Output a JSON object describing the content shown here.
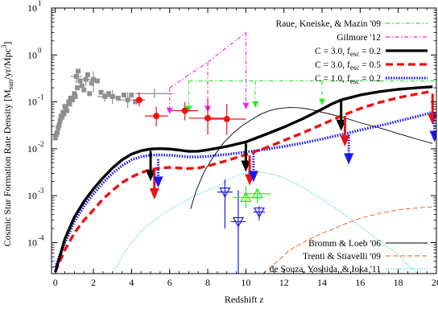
{
  "chart_data": {
    "type": "line",
    "xlabel_main": "Redshift ",
    "xlabel_var": "z",
    "ylabel_pre": "Cosmic Star Formation Rate Density [M",
    "ylabel_sub1": "sun",
    "ylabel_mid": "/yr/Mpc",
    "ylabel_sup": "3",
    "ylabel_post": "]",
    "xlim": [
      -0.2,
      20
    ],
    "ylim_log10": [
      -4.66,
      1
    ],
    "log_y": true,
    "x_ticks": [
      "0",
      "2",
      "4",
      "6",
      "8",
      "10",
      "12",
      "14",
      "16",
      "18",
      "20"
    ],
    "x_tick_values": [
      0,
      2,
      4,
      6,
      8,
      10,
      12,
      14,
      16,
      18,
      20
    ],
    "y_tick_exponents": [
      -4,
      -3,
      -2,
      -1,
      0,
      1
    ],
    "y_tick_base": "10",
    "legend_top": [
      {
        "key": "raue",
        "parts": [
          {
            "t": "Raue, Kneiske, & Mazin '09"
          }
        ],
        "color": "#22ee22",
        "dash": "5,3,1.5,3",
        "width": 1.2
      },
      {
        "key": "gilmore",
        "parts": [
          {
            "t": "Gilmore '12"
          }
        ],
        "color": "#ee22ee",
        "dash": "5,2.5,1.5,2.5",
        "width": 1.2
      },
      {
        "key": "c30_02",
        "parts": [
          {
            "t": "C = 3.0, f"
          },
          {
            "t": "esc",
            "sub": true
          },
          {
            "t": " = 0.2"
          }
        ],
        "color": "#000000",
        "dash": "",
        "width": 3.2
      },
      {
        "key": "c30_05",
        "parts": [
          {
            "t": "C = 3.0, f"
          },
          {
            "t": "esc",
            "sub": true
          },
          {
            "t": " = 0.5"
          }
        ],
        "color": "#ee1111",
        "dash": "9,5",
        "width": 3.2
      },
      {
        "key": "c10_02",
        "parts": [
          {
            "t": "C = 1.0, f"
          },
          {
            "t": "esc",
            "sub": true
          },
          {
            "t": " = 0.2"
          }
        ],
        "color": "#1a1aee",
        "dash": "1.6,1.6",
        "width": 3.2
      }
    ],
    "legend_bottom": [
      {
        "key": "bromm",
        "parts": [
          {
            "t": "Bromm & Loeb '06"
          }
        ],
        "color": "#000000",
        "dash": "",
        "width": 0.9
      },
      {
        "key": "trenti",
        "parts": [
          {
            "t": "Trenti & Stiavelli '09"
          }
        ],
        "color": "#ee5511",
        "dash": "6,3",
        "width": 0.9
      },
      {
        "key": "desouza",
        "parts": [
          {
            "t": "de Souza, Yoshida, & Ioka '11"
          }
        ],
        "color": "#11cccc",
        "dash": "1.2,1.8",
        "width": 1.0
      }
    ],
    "curves": {
      "c30_02": [
        [
          0,
          2.35e-05
        ],
        [
          0.5,
          0.00012
        ],
        [
          1,
          0.00035
        ],
        [
          1.5,
          0.00075
        ],
        [
          2,
          0.0014
        ],
        [
          2.5,
          0.0024
        ],
        [
          3,
          0.0039
        ],
        [
          3.5,
          0.0058
        ],
        [
          4,
          0.0077
        ],
        [
          4.5,
          0.0091
        ],
        [
          5,
          0.0099
        ],
        [
          5.5,
          0.0101
        ],
        [
          6,
          0.0099
        ],
        [
          6.5,
          0.0094
        ],
        [
          7,
          0.0088
        ],
        [
          7.5,
          0.0089
        ],
        [
          8,
          0.0095
        ],
        [
          9,
          0.0112
        ],
        [
          10,
          0.014
        ],
        [
          11,
          0.02
        ],
        [
          12,
          0.029
        ],
        [
          13,
          0.044
        ],
        [
          14,
          0.07
        ],
        [
          14.5,
          0.09
        ],
        [
          15,
          0.11
        ],
        [
          16,
          0.14
        ],
        [
          17,
          0.165
        ],
        [
          18,
          0.185
        ],
        [
          19,
          0.2
        ],
        [
          19.8,
          0.21
        ]
      ],
      "c30_05": [
        [
          0,
          2.4e-05
        ],
        [
          0.5,
          7e-05
        ],
        [
          1,
          0.00016
        ],
        [
          1.5,
          0.0003
        ],
        [
          2,
          0.0005
        ],
        [
          2.5,
          0.00085
        ],
        [
          3,
          0.0013
        ],
        [
          3.5,
          0.0019
        ],
        [
          4,
          0.0025
        ],
        [
          4.5,
          0.0031
        ],
        [
          5,
          0.0036
        ],
        [
          5.5,
          0.0039
        ],
        [
          6,
          0.004
        ],
        [
          6.5,
          0.0039
        ],
        [
          7,
          0.0038
        ],
        [
          7.5,
          0.0039
        ],
        [
          8,
          0.0043
        ],
        [
          9,
          0.0056
        ],
        [
          10,
          0.0075
        ],
        [
          11,
          0.0103
        ],
        [
          12,
          0.015
        ],
        [
          13,
          0.022
        ],
        [
          14,
          0.033
        ],
        [
          15,
          0.05
        ],
        [
          16,
          0.072
        ],
        [
          17,
          0.097
        ],
        [
          18,
          0.123
        ],
        [
          19,
          0.148
        ],
        [
          19.8,
          0.17
        ]
      ],
      "c10_02": [
        [
          0,
          3e-05
        ],
        [
          0.5,
          0.0001
        ],
        [
          1,
          0.00028
        ],
        [
          1.5,
          0.0006
        ],
        [
          2,
          0.0011
        ],
        [
          2.5,
          0.0019
        ],
        [
          3,
          0.003
        ],
        [
          3.5,
          0.0044
        ],
        [
          4,
          0.0058
        ],
        [
          4.5,
          0.0068
        ],
        [
          5,
          0.0073
        ],
        [
          5.5,
          0.0074
        ],
        [
          6,
          0.0073
        ],
        [
          6.5,
          0.007
        ],
        [
          7,
          0.0067
        ],
        [
          7.5,
          0.0067
        ],
        [
          8,
          0.0069
        ],
        [
          9,
          0.0076
        ],
        [
          10,
          0.0085
        ],
        [
          11,
          0.0097
        ],
        [
          12,
          0.0112
        ],
        [
          13,
          0.0133
        ],
        [
          14,
          0.0162
        ],
        [
          15,
          0.02
        ],
        [
          16,
          0.025
        ],
        [
          17,
          0.031
        ],
        [
          18,
          0.039
        ],
        [
          19,
          0.049
        ],
        [
          19.8,
          0.06
        ]
      ],
      "bromm": [
        [
          7.1,
          0.00052
        ],
        [
          7.4,
          0.0013
        ],
        [
          7.8,
          0.0032
        ],
        [
          8.3,
          0.0068
        ],
        [
          8.8,
          0.013
        ],
        [
          9.3,
          0.021
        ],
        [
          9.8,
          0.031
        ],
        [
          10.3,
          0.042
        ],
        [
          10.8,
          0.055
        ],
        [
          11.3,
          0.066
        ],
        [
          11.8,
          0.073
        ],
        [
          12.3,
          0.076
        ],
        [
          12.8,
          0.075
        ],
        [
          13.3,
          0.07
        ],
        [
          14,
          0.06
        ],
        [
          15,
          0.048
        ],
        [
          16,
          0.036
        ],
        [
          17,
          0.028
        ],
        [
          18,
          0.021
        ],
        [
          19,
          0.016
        ],
        [
          19.8,
          0.013
        ]
      ],
      "trenti": [
        [
          10.9,
          2.2e-05
        ],
        [
          11.3,
          3e-05
        ],
        [
          11.8,
          4.5e-05
        ],
        [
          12.3,
          7e-05
        ],
        [
          13,
          0.0001
        ],
        [
          13.7,
          0.00014
        ],
        [
          14.5,
          0.00019
        ],
        [
          15.3,
          0.00026
        ],
        [
          16,
          0.00033
        ],
        [
          17,
          0.00042
        ],
        [
          18,
          0.0005
        ],
        [
          19,
          0.00055
        ],
        [
          19.8,
          0.00058
        ]
      ],
      "desouza": [
        [
          3.0,
          2.2e-05
        ],
        [
          3.2,
          3e-05
        ],
        [
          3.6,
          6e-05
        ],
        [
          4,
          0.0001
        ],
        [
          4.5,
          0.00017
        ],
        [
          5,
          0.00026
        ],
        [
          5.5,
          0.00037
        ],
        [
          6,
          0.0005
        ],
        [
          6.5,
          0.00066
        ],
        [
          7,
          0.00085
        ],
        [
          7.5,
          0.00108
        ],
        [
          8,
          0.0013
        ],
        [
          8.5,
          0.0016
        ],
        [
          9,
          0.0021
        ],
        [
          9.5,
          0.0027
        ],
        [
          10,
          0.0031
        ],
        [
          10.5,
          0.0033
        ],
        [
          11,
          0.0031
        ],
        [
          11.5,
          0.0028
        ],
        [
          12,
          0.0024
        ],
        [
          13,
          0.0015
        ],
        [
          14,
          0.00085
        ],
        [
          15,
          0.00045
        ],
        [
          16,
          0.00022
        ],
        [
          17,
          0.00011
        ],
        [
          18,
          5.5e-05
        ],
        [
          18.6,
          3e-05
        ],
        [
          19,
          2.2e-05
        ]
      ]
    },
    "raue_segments": [
      {
        "x0": 7,
        "x1": 20,
        "y": 0.28,
        "drops": [
          [
            7,
            0.06
          ],
          [
            10.5,
            0.075
          ],
          [
            14,
            0.085
          ]
        ]
      }
    ],
    "gilmore_segments": [
      {
        "x0": 6,
        "x1": 10,
        "pts": [
          [
            6,
            0.2
          ],
          [
            8,
            0.7
          ],
          [
            10,
            3.0
          ]
        ],
        "drops": [
          [
            6,
            0.055
          ],
          [
            8,
            0.06
          ],
          [
            10,
            0.07
          ]
        ]
      }
    ],
    "gray_points": [
      [
        0,
        0.017
      ],
      [
        0.05,
        0.02
      ],
      [
        0.1,
        0.022
      ],
      [
        0.15,
        0.028
      ],
      [
        0.2,
        0.032
      ],
      [
        0.25,
        0.04
      ],
      [
        0.3,
        0.05
      ],
      [
        0.35,
        0.047
      ],
      [
        0.4,
        0.06
      ],
      [
        0.45,
        0.055
      ],
      [
        0.5,
        0.08
      ],
      [
        0.55,
        0.07
      ],
      [
        0.6,
        0.065
      ],
      [
        0.7,
        0.1
      ],
      [
        0.75,
        0.09
      ],
      [
        0.8,
        0.12
      ],
      [
        0.9,
        0.11
      ],
      [
        1.0,
        0.15
      ],
      [
        1.05,
        0.13
      ],
      [
        1.1,
        0.35
      ],
      [
        1.15,
        0.2
      ],
      [
        1.2,
        0.45
      ],
      [
        1.3,
        0.28
      ],
      [
        1.4,
        0.22
      ],
      [
        1.5,
        0.18
      ],
      [
        1.6,
        0.3
      ],
      [
        1.7,
        0.38
      ],
      [
        1.8,
        0.15
      ],
      [
        1.9,
        0.25
      ],
      [
        2,
        0.3
      ],
      [
        2.2,
        0.28
      ],
      [
        2.4,
        0.16
      ],
      [
        2.6,
        0.13
      ],
      [
        2.8,
        0.15
      ],
      [
        3,
        0.13
      ],
      [
        3.3,
        0.12
      ],
      [
        3.6,
        0.14
      ],
      [
        3.8,
        0.11
      ],
      [
        4.0,
        0.14
      ],
      [
        4.2,
        0.1
      ]
    ],
    "gray_errbars": [
      [
        1.1,
        0.35,
        0.25,
        0.48,
        0.3
      ],
      [
        1.6,
        0.3,
        0.22,
        0.42,
        0.25
      ],
      [
        2,
        0.3,
        0.16,
        0.45,
        0.35
      ],
      [
        3,
        0.13,
        0.09,
        0.18,
        0.3
      ],
      [
        3.8,
        0.11,
        0.075,
        0.16,
        0.6
      ],
      [
        2.6,
        0.13,
        0.1,
        0.16,
        0.4
      ],
      [
        5.2,
        0.15,
        0.12,
        0.19,
        1.0
      ]
    ],
    "red_points": [
      [
        4.4,
        0.11,
        0.08,
        0.16,
        0.3
      ],
      [
        5.3,
        0.05,
        0.03,
        0.08,
        0.6
      ],
      [
        6.8,
        0.065,
        0.04,
        0.1,
        0.7
      ],
      [
        8.0,
        0.045,
        0.02,
        0.12,
        1.0
      ],
      [
        9.0,
        0.043,
        0.02,
        0.09,
        1.0
      ]
    ],
    "green_triangles": [
      [
        10.0,
        0.00092,
        0.00055,
        0.0016,
        0.7
      ],
      [
        10.6,
        0.0011,
        0.0007,
        0.0014,
        0.7
      ]
    ],
    "blue_triangles": [
      [
        8.9,
        0.0012,
        0.0002,
        0.0022,
        0.4
      ],
      [
        9.6,
        0.00028,
        2.2e-05,
        0.0013,
        0.4
      ],
      [
        10.7,
        0.00045,
        0.0003,
        0.0006,
        0.3
      ]
    ],
    "arrows": [
      {
        "x": 5.0,
        "y0": 0.009,
        "y1": 0.0022,
        "color": "#000000"
      },
      {
        "x": 5.2,
        "y0": 0.0035,
        "y1": 0.0009,
        "color": "#ee1111"
      },
      {
        "x": 5.4,
        "y0": 0.006,
        "y1": 0.0016,
        "color": "#1a1aee"
      },
      {
        "x": 10.0,
        "y0": 0.013,
        "y1": 0.0035,
        "color": "#000000"
      },
      {
        "x": 10.2,
        "y0": 0.0072,
        "y1": 0.0018,
        "color": "#ee1111"
      },
      {
        "x": 10.4,
        "y0": 0.008,
        "y1": 0.0021,
        "color": "#1a1aee"
      },
      {
        "x": 15.0,
        "y0": 0.11,
        "y1": 0.026,
        "color": "#000000"
      },
      {
        "x": 15.2,
        "y0": 0.05,
        "y1": 0.012,
        "color": "#ee1111"
      },
      {
        "x": 15.4,
        "y0": 0.02,
        "y1": 0.005,
        "color": "#1a1aee"
      },
      {
        "x": 19.8,
        "y0": 0.15,
        "y1": 0.035,
        "color": "#ee1111"
      },
      {
        "x": 19.9,
        "y0": 0.06,
        "y1": 0.015,
        "color": "#1a1aee"
      }
    ],
    "colors": {
      "gray": "#909090",
      "red": "#ee1111",
      "blue": "#1a1aee",
      "green": "#22ee22",
      "magenta": "#ee22ee",
      "axis": "#000000"
    }
  }
}
